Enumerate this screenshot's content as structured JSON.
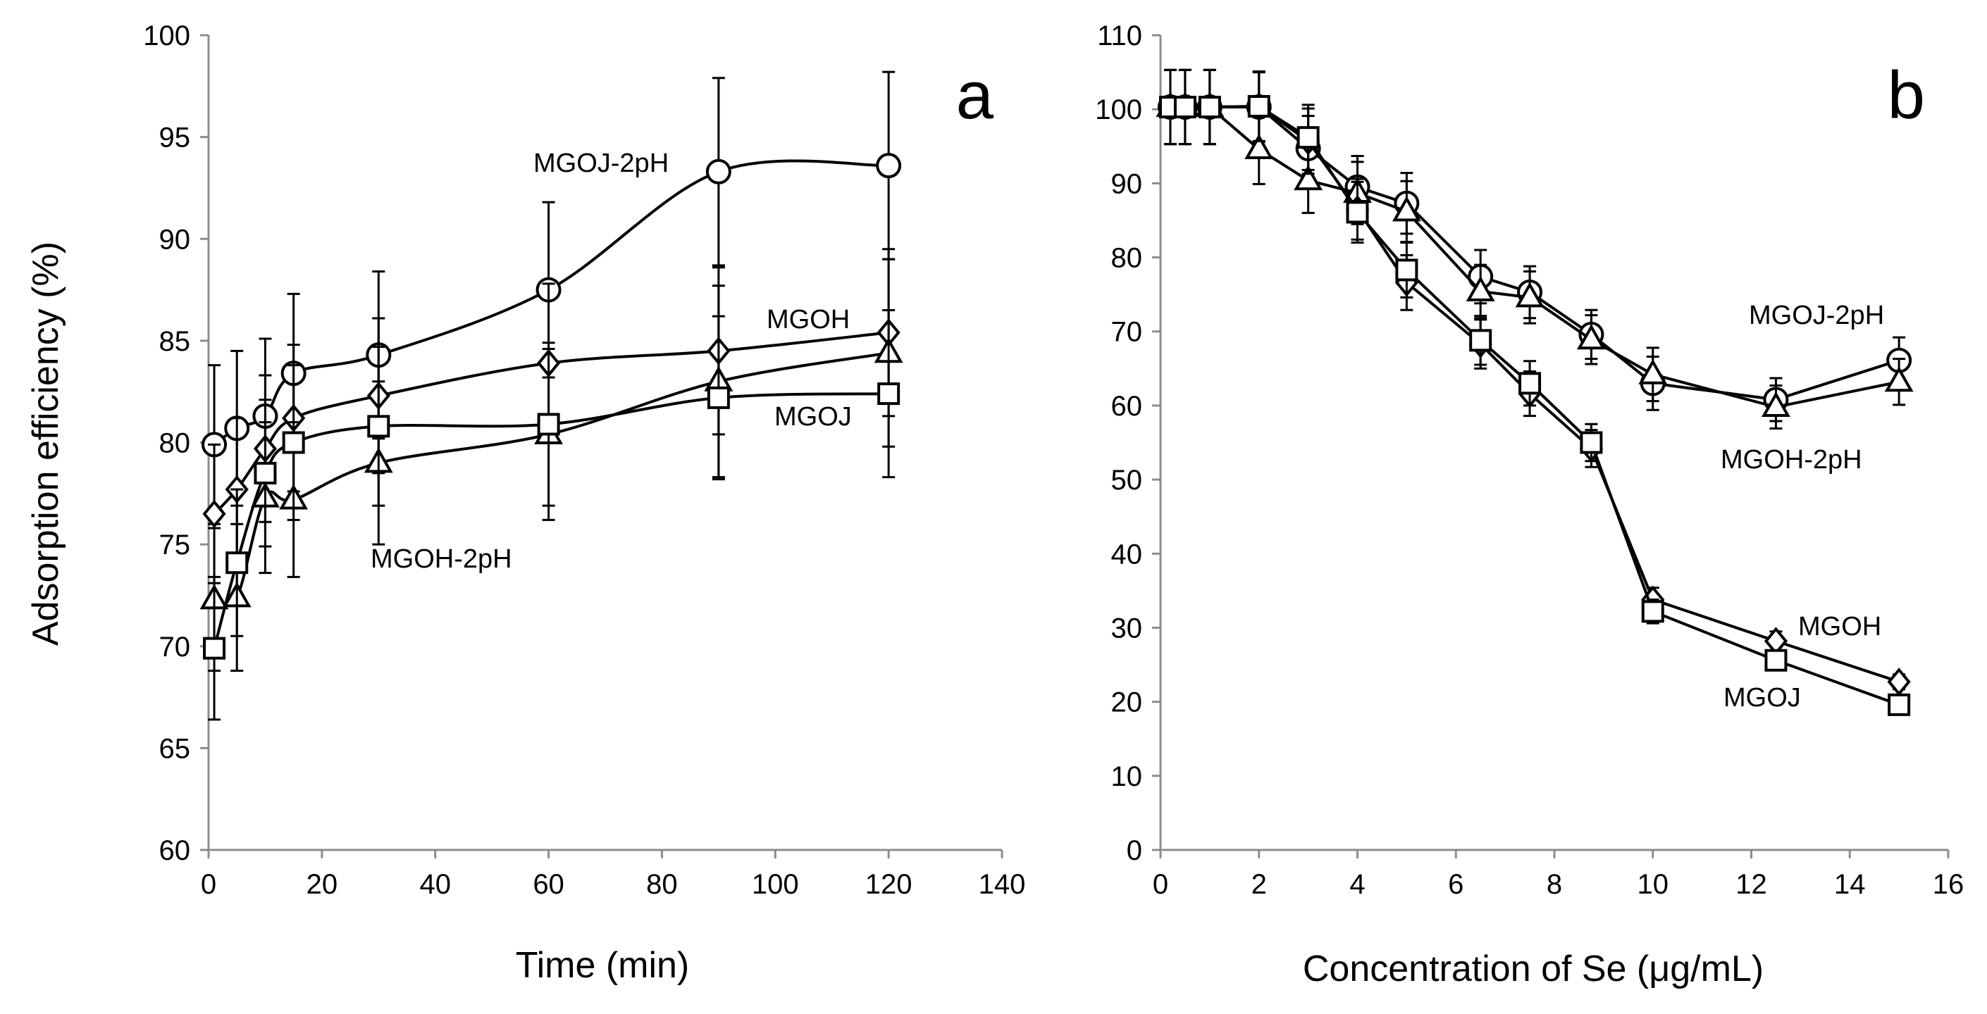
{
  "chart_data": [
    {
      "type": "line",
      "panel": "a",
      "xlabel": "Time (min)",
      "ylabel": "Adsorption efficiency (%)",
      "xlim": [
        0,
        140
      ],
      "ylim": [
        60,
        100
      ],
      "xticks": [
        0,
        20,
        40,
        60,
        80,
        100,
        120,
        140
      ],
      "yticks": [
        60,
        65,
        70,
        75,
        80,
        85,
        90,
        95,
        100
      ],
      "grid": false,
      "x": [
        1,
        5,
        10,
        15,
        30,
        60,
        90,
        120
      ],
      "series": [
        {
          "name": "MGOJ-2pH",
          "marker": "circle",
          "values": [
            79.9,
            80.7,
            81.3,
            83.4,
            84.3,
            87.5,
            93.3,
            93.6
          ],
          "errors": [
            3.9,
            3.8,
            3.8,
            3.9,
            4.1,
            4.3,
            4.6,
            4.6
          ]
        },
        {
          "name": "MGOH",
          "marker": "diamond",
          "values": [
            76.5,
            77.7,
            79.7,
            81.2,
            82.3,
            83.9,
            84.5,
            85.4
          ],
          "errors": [
            3.4,
            3.5,
            3.6,
            3.6,
            3.8,
            3.9,
            4.1,
            4.1
          ]
        },
        {
          "name": "MGOH-2pH",
          "marker": "triangle",
          "values": [
            72.3,
            72.4,
            77.3,
            77.2,
            79.0,
            80.4,
            83.0,
            84.4
          ],
          "errors": [
            3.5,
            3.6,
            3.7,
            3.8,
            4.0,
            4.2,
            4.7,
            4.6
          ]
        },
        {
          "name": "MGOJ",
          "marker": "square",
          "values": [
            69.9,
            74.1,
            78.5,
            80.0,
            80.8,
            80.9,
            82.2,
            82.4
          ],
          "errors": [
            3.5,
            3.6,
            3.6,
            3.8,
            3.9,
            4.0,
            4.0,
            4.1
          ]
        }
      ]
    },
    {
      "type": "line",
      "panel": "b",
      "xlabel": "Concentration of Se (μg/mL)",
      "ylabel": "",
      "xlim": [
        0,
        16
      ],
      "ylim": [
        0,
        110
      ],
      "xticks": [
        0,
        2,
        4,
        6,
        8,
        10,
        12,
        14,
        16
      ],
      "yticks": [
        0,
        10,
        20,
        30,
        40,
        50,
        60,
        70,
        80,
        90,
        100,
        110
      ],
      "grid": false,
      "x": [
        0.2,
        0.5,
        1,
        2,
        3,
        4,
        5,
        6.5,
        7.5,
        8.75,
        10,
        12.5,
        15
      ],
      "series": [
        {
          "name": "MGOJ-2pH",
          "marker": "circle",
          "values": [
            100.3,
            100.3,
            100.3,
            100.3,
            94.7,
            89.5,
            87.3,
            77.4,
            75.3,
            69.6,
            63.0,
            60.8,
            66.1
          ],
          "errors": [
            5,
            5,
            5,
            4.7,
            4.4,
            4.2,
            4.1,
            3.6,
            3.5,
            3.3,
            3.6,
            2.9,
            3.1
          ]
        },
        {
          "name": "MGOH-2pH",
          "marker": "triangle",
          "values": [
            100.3,
            100.3,
            100.3,
            94.6,
            90.4,
            88.7,
            86.2,
            75.4,
            74.6,
            68.9,
            64.2,
            59.8,
            63.2
          ],
          "errors": [
            5,
            5,
            5,
            4.7,
            4.4,
            4.2,
            4.1,
            3.6,
            3.5,
            3.3,
            3.6,
            2.9,
            3.1
          ]
        },
        {
          "name": "MGOH",
          "marker": "diamond",
          "values": [
            100.3,
            100.3,
            100.3,
            100.4,
            95.7,
            86.5,
            76.6,
            68.3,
            61.6,
            54.2,
            33.8,
            28.2,
            22.7
          ],
          "errors": [
            5,
            5,
            5,
            4.7,
            4.4,
            4.1,
            3.7,
            3.3,
            3.0,
            2.5,
            1.6,
            1.3,
            1.0
          ]
        },
        {
          "name": "MGOJ",
          "marker": "square",
          "values": [
            100.3,
            100.3,
            100.3,
            100.4,
            96.2,
            86.1,
            78.3,
            68.8,
            63.0,
            55.0,
            32.2,
            25.6,
            19.6
          ],
          "errors": [
            5,
            5,
            5,
            4.7,
            4.4,
            4.1,
            3.7,
            3.3,
            3.0,
            2.5,
            1.6,
            1.3,
            1.0
          ]
        }
      ]
    }
  ]
}
